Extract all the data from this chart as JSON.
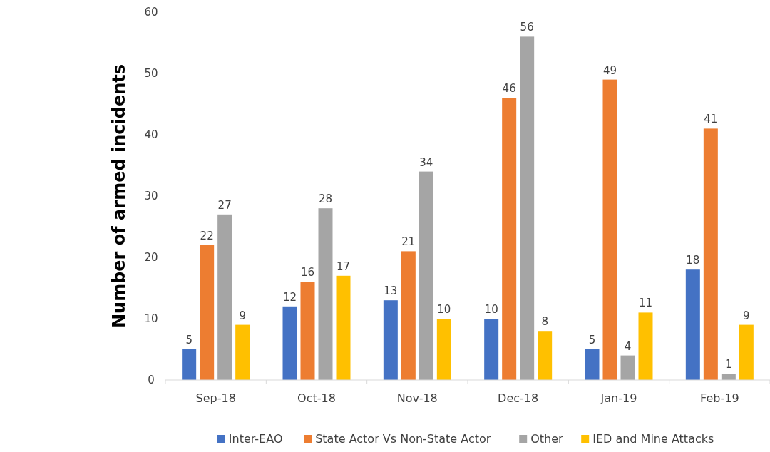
{
  "chart_data": {
    "type": "bar",
    "ylabel": "Number of armed incidents",
    "categories": [
      "Sep-18",
      "Oct-18",
      "Nov-18",
      "Dec-18",
      "Jan-19",
      "Feb-19"
    ],
    "series": [
      {
        "name": "Inter-EAO",
        "color": "#4472c4",
        "values": [
          5,
          12,
          13,
          10,
          5,
          18
        ]
      },
      {
        "name": "State Actor Vs Non-State Actor",
        "color": "#ed7d31",
        "values": [
          22,
          16,
          21,
          46,
          49,
          41
        ]
      },
      {
        "name": "Other",
        "color": "#a5a5a5",
        "values": [
          27,
          28,
          34,
          56,
          4,
          1
        ]
      },
      {
        "name": "IED and Mine Attacks",
        "color": "#ffc000",
        "values": [
          9,
          17,
          10,
          8,
          11,
          9
        ]
      }
    ],
    "ylim": [
      0,
      60
    ],
    "yticks": [
      0,
      10,
      20,
      30,
      40,
      50,
      60
    ],
    "grid": false,
    "legend": "bottom",
    "data_labels": true
  }
}
